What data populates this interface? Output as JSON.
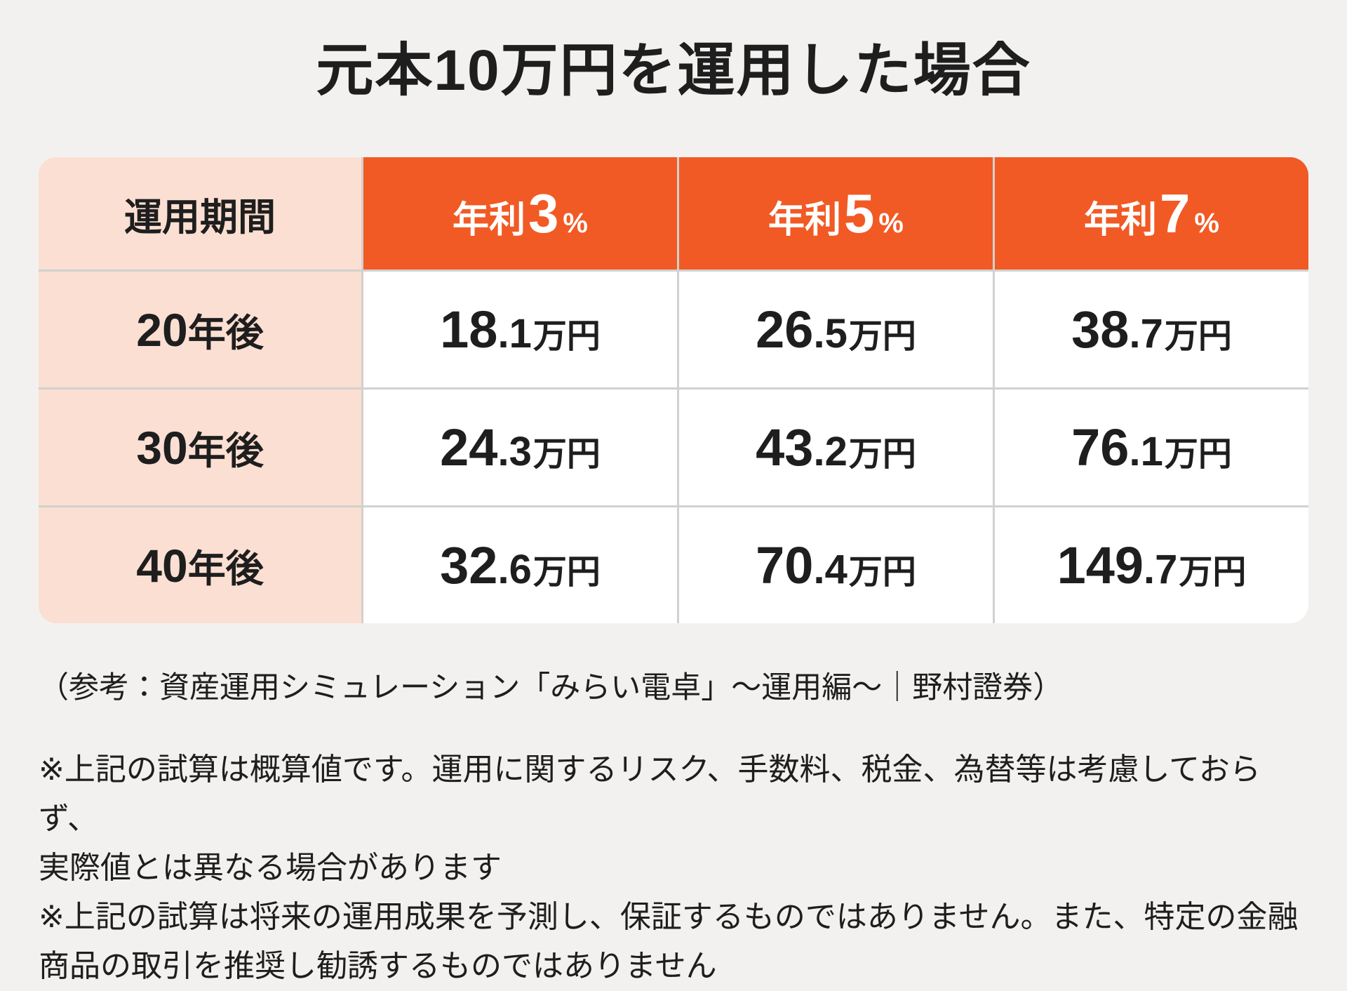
{
  "page": {
    "title": "元本10万円を運用した場合",
    "colors": {
      "background": "#f2f1ef",
      "accent_orange": "#f15a24",
      "accent_peach": "#fbdfd2",
      "separator": "#d2d1cf",
      "text": "#1e1e1e",
      "header_text": "#ffffff"
    }
  },
  "chart_data": {
    "type": "table",
    "title": "元本10万円を運用した場合",
    "columns": [
      "運用期間",
      "年利3%",
      "年利5%",
      "年利7%"
    ],
    "rows": [
      [
        "20年後",
        "18.1万円",
        "26.5万円",
        "38.7万円"
      ],
      [
        "30年後",
        "24.3万円",
        "43.2万円",
        "76.1万円"
      ],
      [
        "40年後",
        "32.6万円",
        "70.4万円",
        "149.7万円"
      ]
    ],
    "principal_man_yen": 10,
    "periods_years": [
      20,
      30,
      40
    ],
    "annual_rates_percent": [
      3,
      5,
      7
    ],
    "series": [
      {
        "name": "年利3%",
        "values_man_yen": [
          18.1,
          24.3,
          32.6
        ]
      },
      {
        "name": "年利5%",
        "values_man_yen": [
          26.5,
          43.2,
          70.4
        ]
      },
      {
        "name": "年利7%",
        "values_man_yen": [
          38.7,
          76.1,
          149.7
        ]
      }
    ]
  },
  "table": {
    "header": {
      "period_label": "運用期間",
      "rate_columns": [
        {
          "prefix": "年利",
          "rate": "3",
          "pct": "%"
        },
        {
          "prefix": "年利",
          "rate": "5",
          "pct": "%"
        },
        {
          "prefix": "年利",
          "rate": "7",
          "pct": "%"
        }
      ]
    },
    "rows": [
      {
        "period_num": "20",
        "period_suffix": "年後",
        "cells": [
          {
            "int": "18",
            "dec": ".1",
            "unit": "万円"
          },
          {
            "int": "26",
            "dec": ".5",
            "unit": "万円"
          },
          {
            "int": "38",
            "dec": ".7",
            "unit": "万円"
          }
        ]
      },
      {
        "period_num": "30",
        "period_suffix": "年後",
        "cells": [
          {
            "int": "24",
            "dec": ".3",
            "unit": "万円"
          },
          {
            "int": "43",
            "dec": ".2",
            "unit": "万円"
          },
          {
            "int": "76",
            "dec": ".1",
            "unit": "万円"
          }
        ]
      },
      {
        "period_num": "40",
        "period_suffix": "年後",
        "cells": [
          {
            "int": "32",
            "dec": ".6",
            "unit": "万円"
          },
          {
            "int": "70",
            "dec": ".4",
            "unit": "万円"
          },
          {
            "int": "149",
            "dec": ".7",
            "unit": "万円"
          }
        ]
      }
    ]
  },
  "footer": {
    "reference": "（参考：資産運用シミュレーション「みらい電卓」〜運用編〜｜野村證券）",
    "notes": [
      "※上記の試算は概算値です。運用に関するリスク、手数料、税金、為替等は考慮しておらず、\n実際値とは異なる場合があります",
      "※上記の試算は将来の運用成果を予測し、保証するものではありません。また、特定の金融\n商品の取引を推奨し勧誘するものではありません"
    ]
  }
}
